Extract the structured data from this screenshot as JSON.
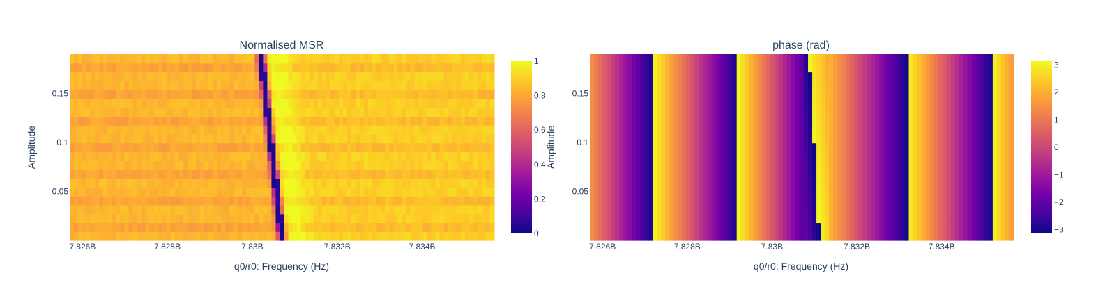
{
  "chart_data": [
    {
      "type": "heatmap",
      "title": "Normalised MSR",
      "xlabel": "q0/r0: Frequency (Hz)",
      "ylabel": "Amplitude",
      "x_range_hz": [
        7825700000,
        7835700000
      ],
      "y_range": [
        0,
        0.19
      ],
      "x_ticks": [
        {
          "value": 7826000000,
          "label": "7.826B"
        },
        {
          "value": 7828000000,
          "label": "7.828B"
        },
        {
          "value": 7830000000,
          "label": "7.83B"
        },
        {
          "value": 7832000000,
          "label": "7.832B"
        },
        {
          "value": 7834000000,
          "label": "7.834B"
        }
      ],
      "y_ticks": [
        {
          "value": 0.05,
          "label": "0.05"
        },
        {
          "value": 0.1,
          "label": "0.1"
        },
        {
          "value": 0.15,
          "label": "0.15"
        }
      ],
      "colorbar": {
        "range": [
          0,
          1
        ],
        "ticks": [
          {
            "value": 0,
            "label": "0"
          },
          {
            "value": 0.2,
            "label": "0.2"
          },
          {
            "value": 0.4,
            "label": "0.4"
          },
          {
            "value": 0.6,
            "label": "0.6"
          },
          {
            "value": 0.8,
            "label": "0.8"
          },
          {
            "value": 1,
            "label": "1"
          }
        ]
      },
      "colorscale": "plasma",
      "description_of_values": "Resonance dip (value ~0) near 7.8302B Hz at high amplitude, shifting to ~7.8307B Hz at low amplitude; background ~0.85-0.95, peak ~1.0 just above the dip frequency.",
      "z_model": {
        "dip_high_amp_hz": 7830200000,
        "dip_low_amp_hz": 7830700000,
        "background": 0.88
      }
    },
    {
      "type": "heatmap",
      "title": "phase (rad)",
      "xlabel": "q0/r0: Frequency (Hz)",
      "ylabel": "Amplitude",
      "x_range_hz": [
        7825700000,
        7835700000
      ],
      "y_range": [
        0,
        0.19
      ],
      "x_ticks": [
        {
          "value": 7826000000,
          "label": "7.826B"
        },
        {
          "value": 7828000000,
          "label": "7.828B"
        },
        {
          "value": 7830000000,
          "label": "7.83B"
        },
        {
          "value": 7832000000,
          "label": "7.832B"
        },
        {
          "value": 7834000000,
          "label": "7.834B"
        }
      ],
      "y_ticks": [
        {
          "value": 0.05,
          "label": "0.05"
        },
        {
          "value": 0.1,
          "label": "0.1"
        },
        {
          "value": 0.15,
          "label": "0.15"
        }
      ],
      "colorbar": {
        "range": [
          -3.1416,
          3.1416
        ],
        "ticks": [
          {
            "value": -3,
            "label": "−3"
          },
          {
            "value": -2,
            "label": "−2"
          },
          {
            "value": -1,
            "label": "−1"
          },
          {
            "value": 0,
            "label": "0"
          },
          {
            "value": 1,
            "label": "1"
          },
          {
            "value": 2,
            "label": "2"
          },
          {
            "value": 3,
            "label": "3"
          }
        ]
      },
      "colorscale": "plasma",
      "description_of_values": "Phase wraps linearly with frequency from +π to −π about every 2.0 MHz; wraps at ~7.8272B, ~7.8292B, ~7.831B, ~7.8332B, ~7.8352B Hz.",
      "z_model": {
        "wrap_hz": [
          7827200000,
          7829200000,
          7831000000,
          7833200000,
          7835200000
        ]
      }
    }
  ]
}
